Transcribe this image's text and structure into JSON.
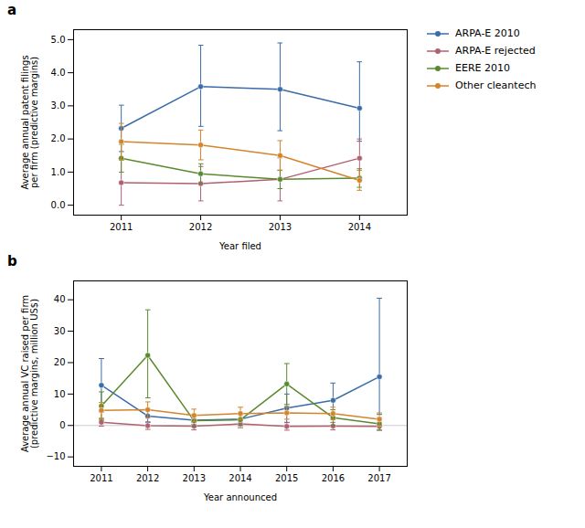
{
  "chart_data": [
    {
      "type": "line",
      "title": "a",
      "x": [
        2011,
        2012,
        2013,
        2014
      ],
      "xlabel": "Year filed",
      "ylabel": "Average annual patent filings\nper firm (predictive margins)",
      "xlim": [
        2010.4,
        2014.6
      ],
      "xticks": [
        2011,
        2012,
        2013,
        2014
      ],
      "ylim": [
        -0.3,
        5.3
      ],
      "yticks": [
        0,
        1,
        2,
        3,
        4,
        5
      ],
      "grid": false,
      "legend": "right",
      "series": [
        {
          "name": "ARPA-E 2010",
          "color": "#3a6ca8",
          "marker": "circle",
          "values": [
            2.32,
            3.58,
            3.5,
            2.93
          ],
          "yerr_lo": [
            0.7,
            1.2,
            1.25,
            1.0
          ],
          "yerr_hi": [
            0.7,
            1.25,
            1.4,
            1.4
          ]
        },
        {
          "name": "ARPA-E rejected",
          "color": "#b06070",
          "marker": "circle",
          "values": [
            0.68,
            0.65,
            0.78,
            1.42
          ],
          "yerr_lo": [
            0.68,
            0.52,
            0.65,
            0.58
          ],
          "yerr_hi": [
            0.68,
            0.52,
            0.65,
            0.58
          ]
        },
        {
          "name": "EERE 2010",
          "color": "#5a8a30",
          "marker": "circle",
          "values": [
            1.42,
            0.95,
            0.78,
            0.82
          ],
          "yerr_lo": [
            0.42,
            0.3,
            0.28,
            0.28
          ],
          "yerr_hi": [
            0.42,
            0.3,
            0.28,
            0.28
          ]
        },
        {
          "name": "Other cleantech",
          "color": "#d4842a",
          "marker": "circle",
          "values": [
            1.92,
            1.82,
            1.5,
            0.75
          ],
          "yerr_lo": [
            0.55,
            0.45,
            0.45,
            0.3
          ],
          "yerr_hi": [
            0.55,
            0.45,
            0.45,
            0.3
          ]
        }
      ]
    },
    {
      "type": "line",
      "title": "b",
      "x": [
        2011,
        2012,
        2013,
        2014,
        2015,
        2016,
        2017
      ],
      "xlabel": "Year announced",
      "ylabel": "Average annual VC raised per firm\n(predictive margins, million US$)",
      "xlim": [
        2010.4,
        2017.6
      ],
      "xticks": [
        2011,
        2012,
        2013,
        2014,
        2015,
        2016,
        2017
      ],
      "ylim": [
        -13,
        46
      ],
      "yticks": [
        -10,
        0,
        10,
        20,
        30,
        40
      ],
      "grid": false,
      "hline": 0,
      "series": [
        {
          "name": "ARPA-E 2010",
          "color": "#3a6ca8",
          "marker": "circle",
          "values": [
            12.8,
            3.0,
            1.7,
            2.0,
            5.5,
            8.0,
            15.5
          ],
          "yerr_lo": [
            8.5,
            2.0,
            1.3,
            1.5,
            4.5,
            5.5,
            12.0
          ],
          "yerr_hi": [
            8.5,
            2.0,
            1.3,
            1.5,
            4.5,
            5.5,
            25.0
          ]
        },
        {
          "name": "ARPA-E rejected",
          "color": "#b06070",
          "marker": "circle",
          "values": [
            1.0,
            -0.05,
            -0.2,
            0.5,
            -0.3,
            -0.2,
            -0.3
          ],
          "yerr_lo": [
            1.2,
            1.2,
            1.2,
            1.2,
            1.2,
            1.2,
            1.2
          ],
          "yerr_hi": [
            1.2,
            1.2,
            1.2,
            1.2,
            1.2,
            1.2,
            1.2
          ]
        },
        {
          "name": "EERE 2010",
          "color": "#5a8a30",
          "marker": "circle",
          "values": [
            6.2,
            22.3,
            1.5,
            1.8,
            13.2,
            2.5,
            0.5
          ],
          "yerr_lo": [
            4.5,
            13.5,
            1.8,
            1.8,
            6.5,
            2.5,
            2.0
          ],
          "yerr_hi": [
            4.5,
            14.5,
            1.8,
            1.8,
            6.5,
            2.5,
            2.0
          ]
        },
        {
          "name": "Other cleantech",
          "color": "#d4842a",
          "marker": "circle",
          "values": [
            4.8,
            5.0,
            3.2,
            3.8,
            4.0,
            3.8,
            2.0
          ],
          "yerr_lo": [
            2.5,
            2.5,
            2.0,
            2.0,
            2.0,
            2.0,
            2.0
          ],
          "yerr_hi": [
            2.5,
            2.5,
            2.0,
            2.0,
            2.0,
            2.0,
            2.0
          ]
        }
      ]
    }
  ]
}
